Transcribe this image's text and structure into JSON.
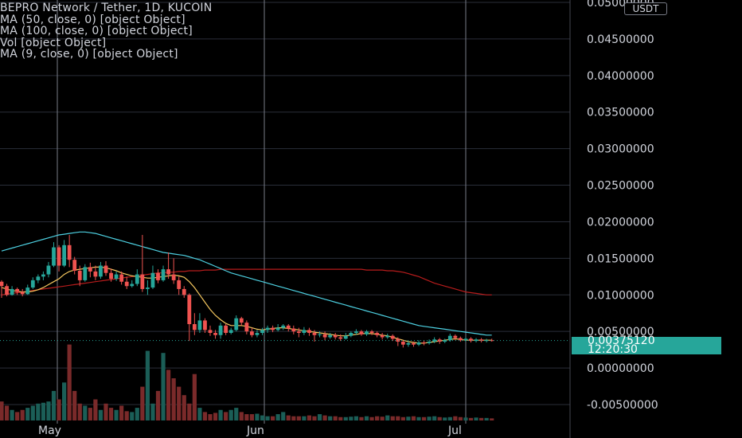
{
  "legend": {
    "title": "BEPRO Network / Tether, 1D, KUCOIN",
    "line1": "MA (50, close, 0) [object Object]",
    "line2": "MA (100, close, 0) [object Object]",
    "line3": "Vol [object Object]",
    "line4": "MA (9, close, 0) [object Object]"
  },
  "currency_button": "USDT",
  "last_price": {
    "value": "0.00375120",
    "countdown": "12:20:30"
  },
  "colors": {
    "up": "#26a69a",
    "down": "#ef5350",
    "ma50": "#4dd0e1",
    "ma100": "#b71c1c",
    "ma9": "#f6c85f",
    "grid": "#2a2e39",
    "vertical_lines": "#787b86",
    "text": "#d1d4dc"
  },
  "chart_data": {
    "type": "candlestick",
    "title": "BEPRO Network / Tether, 1D, KUCOIN",
    "quote_currency": "USDT",
    "y_axis_ticks": [
      "0.05000000",
      "0.04500000",
      "0.04000000",
      "0.03500000",
      "0.03000000",
      "0.02500000",
      "0.02000000",
      "0.01500000",
      "0.01000000",
      "0.00500000",
      "0.00000000",
      "-0.00500000"
    ],
    "x_axis_ticks": [
      "May",
      "Jun",
      "Jul"
    ],
    "ylim": [
      -0.0065,
      0.0505
    ],
    "grid": true,
    "last_price": 0.0037512,
    "candles": [
      [
        0.0118,
        0.0112,
        0.012,
        0.0096
      ],
      [
        0.0112,
        0.01,
        0.0115,
        0.0098
      ],
      [
        0.01,
        0.0108,
        0.0112,
        0.0099
      ],
      [
        0.0108,
        0.0104,
        0.011,
        0.01
      ],
      [
        0.0104,
        0.0101,
        0.0108,
        0.0098
      ],
      [
        0.0101,
        0.011,
        0.0114,
        0.01
      ],
      [
        0.011,
        0.012,
        0.0124,
        0.0108
      ],
      [
        0.012,
        0.0125,
        0.0128,
        0.0116
      ],
      [
        0.0125,
        0.0128,
        0.0132,
        0.012
      ],
      [
        0.0128,
        0.014,
        0.0145,
        0.0124
      ],
      [
        0.014,
        0.0165,
        0.0172,
        0.0138
      ],
      [
        0.0165,
        0.014,
        0.0168,
        0.0132
      ],
      [
        0.014,
        0.0168,
        0.0175,
        0.0138
      ],
      [
        0.0168,
        0.0148,
        0.0182,
        0.0138
      ],
      [
        0.0148,
        0.0133,
        0.0152,
        0.0128
      ],
      [
        0.0133,
        0.012,
        0.014,
        0.0112
      ],
      [
        0.012,
        0.0138,
        0.0142,
        0.0118
      ],
      [
        0.0138,
        0.0132,
        0.0144,
        0.0124
      ],
      [
        0.0132,
        0.0125,
        0.014,
        0.012
      ],
      [
        0.0125,
        0.014,
        0.0145,
        0.0122
      ],
      [
        0.014,
        0.013,
        0.0146,
        0.0126
      ],
      [
        0.013,
        0.0122,
        0.0136,
        0.0118
      ],
      [
        0.0122,
        0.0128,
        0.0132,
        0.0119
      ],
      [
        0.0128,
        0.0118,
        0.0132,
        0.0114
      ],
      [
        0.0118,
        0.0112,
        0.0125,
        0.0108
      ],
      [
        0.0112,
        0.0115,
        0.012,
        0.011
      ],
      [
        0.0115,
        0.0128,
        0.0135,
        0.0112
      ],
      [
        0.0128,
        0.0108,
        0.0182,
        0.0104
      ],
      [
        0.0108,
        0.011,
        0.012,
        0.01
      ],
      [
        0.011,
        0.013,
        0.014,
        0.0108
      ],
      [
        0.013,
        0.012,
        0.0135,
        0.0116
      ],
      [
        0.012,
        0.0135,
        0.014,
        0.0118
      ],
      [
        0.0135,
        0.0128,
        0.0158,
        0.0122
      ],
      [
        0.0128,
        0.012,
        0.015,
        0.0115
      ],
      [
        0.012,
        0.0108,
        0.0125,
        0.01
      ],
      [
        0.0108,
        0.01,
        0.0112,
        0.0096
      ],
      [
        0.01,
        0.006,
        0.0102,
        0.0037
      ],
      [
        0.006,
        0.0052,
        0.0075,
        0.0045
      ],
      [
        0.0052,
        0.0065,
        0.0075,
        0.0048
      ],
      [
        0.0065,
        0.0052,
        0.0068,
        0.0048
      ],
      [
        0.0052,
        0.0048,
        0.0058,
        0.0044
      ],
      [
        0.0048,
        0.0045,
        0.0052,
        0.004
      ],
      [
        0.0045,
        0.0058,
        0.0062,
        0.004
      ],
      [
        0.0058,
        0.0048,
        0.006,
        0.0045
      ],
      [
        0.0048,
        0.0052,
        0.0055,
        0.0046
      ],
      [
        0.0052,
        0.0068,
        0.0072,
        0.005
      ],
      [
        0.0068,
        0.0062,
        0.007,
        0.0058
      ],
      [
        0.0062,
        0.005,
        0.0065,
        0.0046
      ],
      [
        0.005,
        0.0045,
        0.0055,
        0.0042
      ],
      [
        0.0045,
        0.0048,
        0.0052,
        0.0042
      ],
      [
        0.0048,
        0.0052,
        0.0055,
        0.0045
      ],
      [
        0.0052,
        0.0055,
        0.0058,
        0.0048
      ],
      [
        0.0055,
        0.0052,
        0.0058,
        0.0049
      ],
      [
        0.0052,
        0.0055,
        0.006,
        0.005
      ],
      [
        0.0055,
        0.0058,
        0.006,
        0.0052
      ],
      [
        0.0058,
        0.0054,
        0.006,
        0.005
      ],
      [
        0.0054,
        0.005,
        0.0058,
        0.0046
      ],
      [
        0.005,
        0.0048,
        0.0055,
        0.0042
      ],
      [
        0.0048,
        0.0052,
        0.0056,
        0.0045
      ],
      [
        0.0052,
        0.0048,
        0.0055,
        0.0044
      ],
      [
        0.0048,
        0.0045,
        0.0052,
        0.0036
      ],
      [
        0.0045,
        0.0046,
        0.005,
        0.0042
      ],
      [
        0.0046,
        0.0042,
        0.005,
        0.0038
      ],
      [
        0.0042,
        0.0045,
        0.0048,
        0.004
      ],
      [
        0.0045,
        0.0042,
        0.0048,
        0.0039
      ],
      [
        0.0042,
        0.004,
        0.0046,
        0.0037
      ],
      [
        0.004,
        0.0044,
        0.0048,
        0.0039
      ],
      [
        0.0044,
        0.0048,
        0.005,
        0.0042
      ],
      [
        0.0048,
        0.005,
        0.0053,
        0.0045
      ],
      [
        0.005,
        0.0046,
        0.0052,
        0.0044
      ],
      [
        0.0046,
        0.005,
        0.0052,
        0.0044
      ],
      [
        0.005,
        0.0048,
        0.0052,
        0.0045
      ],
      [
        0.0048,
        0.0045,
        0.005,
        0.0042
      ],
      [
        0.0045,
        0.0042,
        0.0048,
        0.0039
      ],
      [
        0.0042,
        0.0044,
        0.0047,
        0.004
      ],
      [
        0.0044,
        0.004,
        0.0046,
        0.0037
      ],
      [
        0.004,
        0.0036,
        0.0042,
        0.003
      ],
      [
        0.0036,
        0.0032,
        0.0038,
        0.0028
      ],
      [
        0.0032,
        0.0034,
        0.0037,
        0.0029
      ],
      [
        0.0034,
        0.0032,
        0.0036,
        0.0029
      ],
      [
        0.0032,
        0.0035,
        0.0038,
        0.003
      ],
      [
        0.0035,
        0.0034,
        0.0038,
        0.0031
      ],
      [
        0.0034,
        0.0036,
        0.0039,
        0.0032
      ],
      [
        0.0036,
        0.0039,
        0.0042,
        0.0034
      ],
      [
        0.0039,
        0.0036,
        0.0041,
        0.0033
      ],
      [
        0.0036,
        0.0038,
        0.004,
        0.0034
      ],
      [
        0.0038,
        0.0044,
        0.0047,
        0.0036
      ],
      [
        0.0044,
        0.0041,
        0.0046,
        0.0038
      ],
      [
        0.0041,
        0.0038,
        0.0043,
        0.0036
      ],
      [
        0.0038,
        0.004,
        0.0042,
        0.0036
      ],
      [
        0.004,
        0.0037,
        0.0042,
        0.0035
      ],
      [
        0.0037,
        0.0039,
        0.0041,
        0.0035
      ],
      [
        0.0039,
        0.0037,
        0.0041,
        0.0035
      ],
      [
        0.0037,
        0.0038,
        0.004,
        0.0035
      ],
      [
        0.0038,
        0.0037512,
        0.004,
        0.0036
      ]
    ],
    "volume": [
      4.5,
      3.5,
      2.5,
      2.0,
      2.5,
      3.0,
      3.5,
      4.0,
      4.2,
      4.5,
      7.0,
      5.0,
      9.0,
      18.0,
      7.0,
      4.0,
      3.5,
      3.0,
      5.0,
      2.5,
      4.0,
      3.0,
      2.5,
      3.5,
      2.2,
      2.0,
      3.0,
      8.0,
      16.5,
      4.0,
      7.0,
      16.0,
      12.0,
      10.0,
      8.0,
      6.0,
      4.0,
      11.0,
      3.0,
      2.0,
      1.5,
      1.8,
      2.5,
      2.0,
      2.5,
      3.0,
      2.0,
      1.5,
      1.5,
      1.6,
      1.2,
      1.0,
      1.0,
      1.5,
      2.0,
      1.2,
      1.0,
      1.0,
      1.0,
      1.2,
      1.0,
      1.5,
      1.2,
      1.0,
      1.0,
      0.8,
      0.8,
      0.9,
      1.0,
      0.8,
      1.0,
      0.8,
      1.0,
      0.9,
      1.2,
      1.0,
      1.0,
      0.8,
      0.9,
      1.0,
      0.8,
      0.8,
      0.9,
      1.0,
      0.8,
      0.7,
      0.8,
      1.0,
      0.8,
      0.7,
      0.6,
      0.7,
      0.6,
      0.6,
      0.5,
      0.5
    ],
    "ma50": [
      0.016,
      0.0162,
      0.0164,
      0.0166,
      0.0168,
      0.017,
      0.0172,
      0.0174,
      0.0176,
      0.0178,
      0.018,
      0.0182,
      0.0183,
      0.0184,
      0.0185,
      0.0186,
      0.0186,
      0.0185,
      0.0184,
      0.0182,
      0.018,
      0.0178,
      0.0176,
      0.0174,
      0.0172,
      0.017,
      0.0168,
      0.0166,
      0.0164,
      0.0162,
      0.016,
      0.0158,
      0.0157,
      0.0156,
      0.0155,
      0.0154,
      0.0152,
      0.015,
      0.0148,
      0.0145,
      0.0142,
      0.0139,
      0.0136,
      0.0133,
      0.013,
      0.0128,
      0.0126,
      0.0124,
      0.0122,
      0.012,
      0.0118,
      0.0116,
      0.0114,
      0.0112,
      0.011,
      0.0108,
      0.0106,
      0.0104,
      0.0102,
      0.01,
      0.0098,
      0.0096,
      0.0094,
      0.0092,
      0.009,
      0.0088,
      0.0086,
      0.0084,
      0.0082,
      0.008,
      0.0078,
      0.0076,
      0.0074,
      0.0072,
      0.007,
      0.0068,
      0.0066,
      0.0064,
      0.0062,
      0.006,
      0.0058,
      0.0057,
      0.0056,
      0.0055,
      0.0054,
      0.0053,
      0.0052,
      0.0051,
      0.005,
      0.0049,
      0.0048,
      0.0047,
      0.0046,
      0.0045,
      0.0045
    ],
    "ma100": [
      0.01,
      0.0101,
      0.0102,
      0.0103,
      0.0104,
      0.0105,
      0.0106,
      0.0107,
      0.0108,
      0.0109,
      0.011,
      0.0111,
      0.0112,
      0.0113,
      0.0114,
      0.0115,
      0.0116,
      0.0117,
      0.0118,
      0.0119,
      0.012,
      0.0121,
      0.0122,
      0.0123,
      0.0124,
      0.0125,
      0.0126,
      0.0127,
      0.0128,
      0.0129,
      0.013,
      0.013,
      0.0131,
      0.0131,
      0.0132,
      0.0132,
      0.0133,
      0.0133,
      0.0133,
      0.0134,
      0.0134,
      0.0134,
      0.0135,
      0.0135,
      0.0135,
      0.0135,
      0.0135,
      0.0135,
      0.0135,
      0.0135,
      0.0135,
      0.0135,
      0.0135,
      0.0135,
      0.0135,
      0.0135,
      0.0135,
      0.0135,
      0.0135,
      0.0135,
      0.0135,
      0.0135,
      0.0135,
      0.0135,
      0.0135,
      0.0135,
      0.0135,
      0.0135,
      0.0135,
      0.0135,
      0.0134,
      0.0134,
      0.0134,
      0.0134,
      0.0133,
      0.0133,
      0.0132,
      0.0131,
      0.0129,
      0.0127,
      0.0125,
      0.0122,
      0.0119,
      0.0116,
      0.0114,
      0.0112,
      0.011,
      0.0108,
      0.0106,
      0.0104,
      0.0103,
      0.0102,
      0.0101,
      0.01,
      0.01
    ],
    "ma9": [
      0.011,
      0.0108,
      0.0106,
      0.0105,
      0.0104,
      0.0104,
      0.0105,
      0.0107,
      0.011,
      0.0114,
      0.0118,
      0.0122,
      0.0128,
      0.0132,
      0.0134,
      0.0135,
      0.0136,
      0.0137,
      0.0138,
      0.0138,
      0.0137,
      0.0135,
      0.0133,
      0.013,
      0.0128,
      0.0126,
      0.0125,
      0.0124,
      0.0123,
      0.0123,
      0.0124,
      0.0125,
      0.0126,
      0.0127,
      0.0126,
      0.0124,
      0.0118,
      0.011,
      0.01,
      0.009,
      0.008,
      0.0072,
      0.0066,
      0.0061,
      0.0058,
      0.0058,
      0.0058,
      0.0057,
      0.0055,
      0.0053,
      0.0052,
      0.0053,
      0.0054,
      0.0055,
      0.0055,
      0.0054,
      0.0053,
      0.0052,
      0.0051,
      0.005,
      0.0049,
      0.0048,
      0.0047,
      0.0046,
      0.0045,
      0.0044,
      0.0044,
      0.0045,
      0.0046,
      0.0047,
      0.0047,
      0.0047,
      0.0046,
      0.0045,
      0.0044,
      0.0042,
      0.004,
      0.0038,
      0.0036,
      0.0035,
      0.0034,
      0.0034,
      0.0035,
      0.0036,
      0.0037,
      0.0038,
      0.0039,
      0.004,
      0.0039,
      0.0038,
      0.0038,
      0.0038,
      0.0038,
      0.0038,
      0.0038
    ]
  }
}
